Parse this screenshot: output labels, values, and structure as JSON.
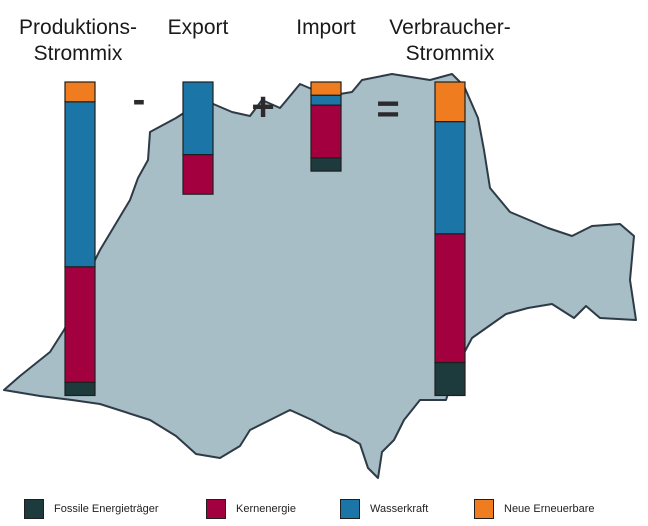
{
  "chart_data": {
    "type": "bar",
    "stacked": true,
    "unit": "",
    "categories": [
      {
        "key": "produktion",
        "title_lines": [
          "Produktions-",
          "Strommix"
        ]
      },
      {
        "key": "export",
        "title_lines": [
          "Export"
        ]
      },
      {
        "key": "import",
        "title_lines": [
          "Import"
        ]
      },
      {
        "key": "verbraucher",
        "title_lines": [
          "Verbraucher-",
          "Strommix"
        ]
      }
    ],
    "operators": [
      "-",
      "+",
      "="
    ],
    "series": [
      {
        "name": "Fossile Energieträger",
        "color": "#1d3a3c",
        "values": [
          4,
          0,
          4,
          10
        ]
      },
      {
        "name": "Kernenergie",
        "color": "#a3003f",
        "values": [
          35,
          12,
          16,
          39
        ]
      },
      {
        "name": "Wasserkraft",
        "color": "#1b75a6",
        "values": [
          50,
          22,
          3,
          34
        ]
      },
      {
        "name": "Neue Erneuerbare",
        "color": "#ef7d1f",
        "values": [
          6,
          0,
          4,
          12
        ]
      }
    ],
    "legend_position": "bottom",
    "axes_visible": false,
    "background_shape": "switzerland-map"
  }
}
